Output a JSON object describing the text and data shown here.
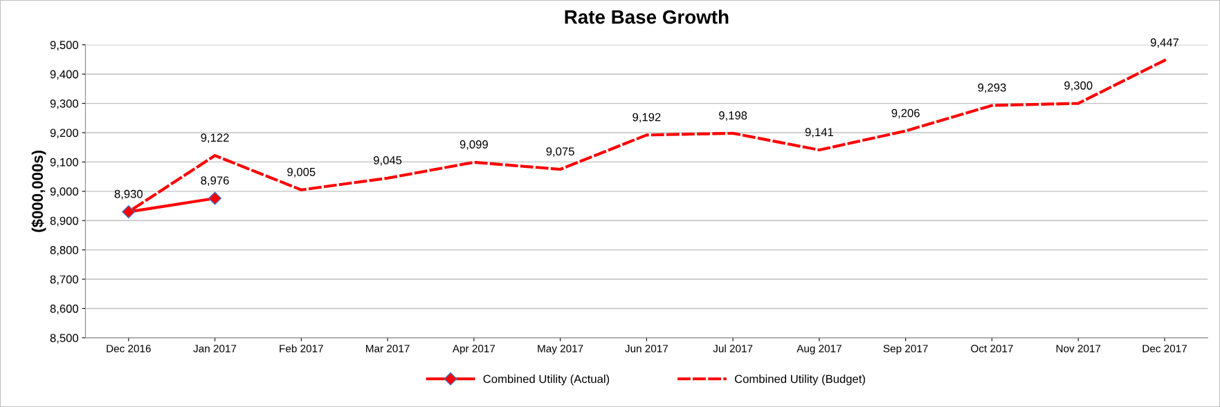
{
  "chart_data": {
    "type": "line",
    "title": "Rate Base Growth",
    "ylabel": "($000,000s)",
    "categories": [
      "Dec 2016",
      "Jan 2017",
      "Feb 2017",
      "Mar 2017",
      "Apr 2017",
      "May 2017",
      "Jun 2017",
      "Jul 2017",
      "Aug 2017",
      "Sep 2017",
      "Oct 2017",
      "Nov 2017",
      "Dec 2017"
    ],
    "series": [
      {
        "name": "Combined Utility (Actual)",
        "color": "#ff0000",
        "marker": "diamond",
        "line_style": "solid",
        "values": [
          8930,
          8976,
          null,
          null,
          null,
          null,
          null,
          null,
          null,
          null,
          null,
          null,
          null
        ],
        "value_labels": [
          "8,930",
          "8,976",
          null,
          null,
          null,
          null,
          null,
          null,
          null,
          null,
          null,
          null,
          null
        ]
      },
      {
        "name": "Combined Utility (Budget)",
        "color": "#ff0000",
        "marker": "none",
        "line_style": "dashed",
        "values": [
          8930,
          9122,
          9005,
          9045,
          9099,
          9075,
          9192,
          9198,
          9141,
          9206,
          9293,
          9300,
          9447
        ],
        "value_labels": [
          null,
          "9,122",
          "9,005",
          "9,045",
          "9,099",
          "9,075",
          "9,192",
          "9,198",
          "9,141",
          "9,206",
          "9,293",
          "9,300",
          "9,447"
        ]
      }
    ],
    "ylim": [
      8500,
      9500
    ],
    "yticks": [
      {
        "value": 8500,
        "label": "8,500"
      },
      {
        "value": 8600,
        "label": "8,600"
      },
      {
        "value": 8700,
        "label": "8,700"
      },
      {
        "value": 8800,
        "label": "8,800"
      },
      {
        "value": 8900,
        "label": "8,900"
      },
      {
        "value": 9000,
        "label": "9,000"
      },
      {
        "value": 9100,
        "label": "9,100"
      },
      {
        "value": 9200,
        "label": "9,200"
      },
      {
        "value": 9300,
        "label": "9,300"
      },
      {
        "value": 9400,
        "label": "9,400"
      },
      {
        "value": 9500,
        "label": "9,500"
      }
    ],
    "grid": "y",
    "legend": "bottom"
  }
}
